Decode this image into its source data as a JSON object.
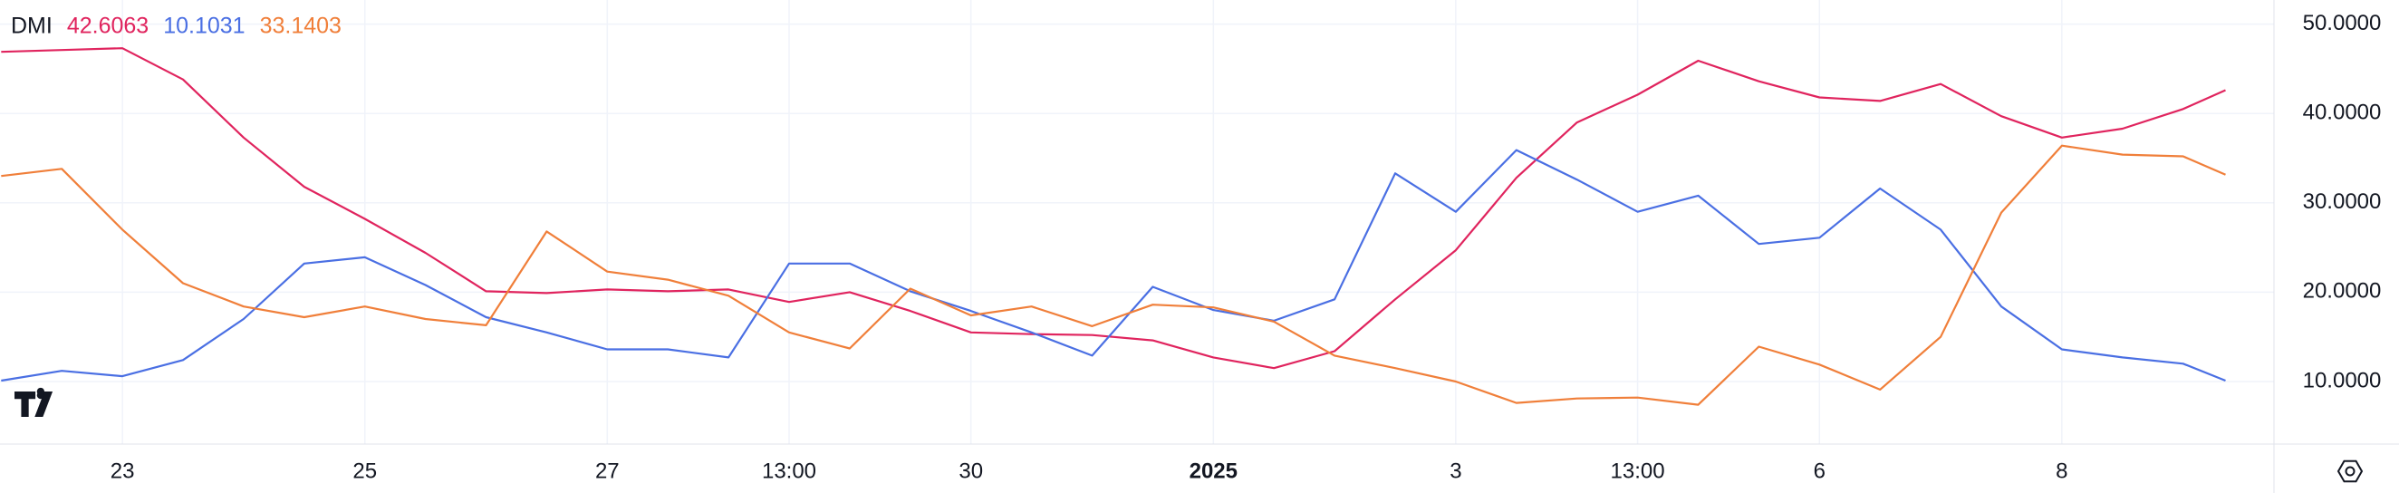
{
  "chart_data": {
    "type": "line",
    "legend": {
      "title": "DMI",
      "values": [
        "42.6063",
        "10.1031",
        "33.1403"
      ]
    },
    "x": [
      -1,
      -0.5,
      0,
      0.5,
      1,
      1.5,
      2,
      2.5,
      3,
      3.5,
      4,
      4.5,
      5,
      5.5,
      6,
      6.5,
      7,
      7.5,
      8,
      8.5,
      9,
      9.5,
      10,
      10.5,
      11,
      11.5,
      12,
      12.5,
      13,
      13.5,
      14,
      14.5,
      15,
      15.5,
      16,
      16.5,
      17,
      17.35
    ],
    "series": [
      {
        "color": "#e0245e",
        "values": [
          46.9,
          47.1,
          47.3,
          43.8,
          37.3,
          31.8,
          28.2,
          24.4,
          20.1,
          19.9,
          20.3,
          20.1,
          20.3,
          18.9,
          20.0,
          17.9,
          15.5,
          15.3,
          15.2,
          14.6,
          12.7,
          11.5,
          13.4,
          19.2,
          24.7,
          32.8,
          39.0,
          42.1,
          45.9,
          43.6,
          41.8,
          41.4,
          43.3,
          39.7,
          37.3,
          38.3,
          40.5,
          42.6063
        ]
      },
      {
        "color": "#4a6fe3",
        "values": [
          10.1,
          11.2,
          10.6,
          12.4,
          17.0,
          23.2,
          23.9,
          20.8,
          17.2,
          15.5,
          13.6,
          13.6,
          12.7,
          23.2,
          23.2,
          20.1,
          17.9,
          15.5,
          12.9,
          20.6,
          18.0,
          16.8,
          19.2,
          33.3,
          29.0,
          35.9,
          32.6,
          29.0,
          30.8,
          25.4,
          26.1,
          31.6,
          27.0,
          18.4,
          13.6,
          12.7,
          12.0,
          10.1031
        ]
      },
      {
        "color": "#f07f3a",
        "values": [
          33.0,
          33.8,
          27.0,
          21.0,
          18.4,
          17.2,
          18.4,
          17.0,
          16.3,
          26.8,
          22.3,
          21.4,
          19.6,
          15.5,
          13.7,
          20.4,
          17.4,
          18.4,
          16.2,
          18.6,
          18.3,
          16.7,
          12.9,
          11.5,
          10.0,
          7.6,
          8.1,
          8.2,
          7.4,
          13.9,
          11.9,
          9.1,
          15.0,
          28.9,
          36.4,
          35.4,
          35.2,
          33.1403
        ]
      }
    ],
    "xlim": [
      -1.01,
      17.75
    ],
    "xticks": [
      {
        "value": 0,
        "label": "23"
      },
      {
        "value": 2,
        "label": "25"
      },
      {
        "value": 4,
        "label": "27"
      },
      {
        "value": 5.5,
        "label": "13:00"
      },
      {
        "value": 7,
        "label": "30"
      },
      {
        "value": 9,
        "label": "2025",
        "bold": true
      },
      {
        "value": 11,
        "label": "3"
      },
      {
        "value": 12.5,
        "label": "13:00"
      },
      {
        "value": 14,
        "label": "6"
      },
      {
        "value": 16,
        "label": "8"
      }
    ],
    "ylim": [
      3,
      52.7
    ],
    "yticks": [
      {
        "value": 10,
        "label": "10.0000"
      },
      {
        "value": 20,
        "label": "20.0000"
      },
      {
        "value": 30,
        "label": "30.0000"
      },
      {
        "value": 40,
        "label": "40.0000"
      },
      {
        "value": 50,
        "label": "50.0000"
      }
    ],
    "grid": true
  }
}
